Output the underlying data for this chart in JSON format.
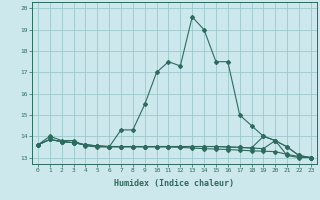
{
  "title": "",
  "xlabel": "Humidex (Indice chaleur)",
  "bg_color": "#cce8ec",
  "line_color": "#2e6b5e",
  "grid_color": "#9cc8cc",
  "xlim": [
    -0.5,
    23.5
  ],
  "ylim": [
    12.7,
    20.3
  ],
  "xticks": [
    0,
    1,
    2,
    3,
    4,
    5,
    6,
    7,
    8,
    9,
    10,
    11,
    12,
    13,
    14,
    15,
    16,
    17,
    18,
    19,
    20,
    21,
    22,
    23
  ],
  "yticks": [
    13,
    14,
    15,
    16,
    17,
    18,
    19,
    20
  ],
  "lines": [
    {
      "x": [
        0,
        1,
        2,
        3,
        4,
        5,
        6,
        7,
        8,
        9,
        10,
        11,
        12,
        13,
        14,
        15,
        16,
        17,
        18,
        19,
        20,
        21,
        22,
        23
      ],
      "y": [
        13.6,
        14.0,
        13.8,
        13.8,
        13.55,
        13.5,
        13.5,
        14.3,
        14.3,
        15.5,
        17.0,
        17.5,
        17.3,
        19.6,
        19.0,
        17.5,
        17.5,
        15.0,
        14.5,
        14.0,
        13.8,
        13.1,
        13.0,
        13.0
      ]
    },
    {
      "x": [
        0,
        1,
        2,
        3,
        4,
        5,
        6,
        7,
        8,
        9,
        10,
        11,
        12,
        13,
        14,
        15,
        16,
        17,
        18,
        19,
        20,
        21,
        22,
        23
      ],
      "y": [
        13.6,
        13.85,
        13.75,
        13.7,
        13.6,
        13.55,
        13.5,
        13.5,
        13.5,
        13.5,
        13.5,
        13.5,
        13.48,
        13.45,
        13.42,
        13.4,
        13.38,
        13.35,
        13.32,
        13.3,
        13.28,
        13.15,
        13.05,
        13.0
      ]
    },
    {
      "x": [
        0,
        1,
        2,
        3,
        4,
        5,
        6,
        7,
        8,
        9,
        10,
        11,
        12,
        13,
        14,
        15,
        16,
        17,
        18,
        19,
        20,
        21,
        22,
        23
      ],
      "y": [
        13.6,
        13.85,
        13.75,
        13.7,
        13.6,
        13.55,
        13.52,
        13.52,
        13.52,
        13.52,
        13.52,
        13.52,
        13.52,
        13.52,
        13.52,
        13.52,
        13.5,
        13.48,
        13.45,
        14.0,
        13.8,
        13.5,
        13.1,
        13.0
      ]
    },
    {
      "x": [
        0,
        1,
        2,
        3,
        4,
        5,
        6,
        7,
        8,
        9,
        10,
        11,
        12,
        13,
        14,
        15,
        16,
        17,
        18,
        19,
        20,
        21,
        22,
        23
      ],
      "y": [
        13.6,
        13.85,
        13.75,
        13.7,
        13.6,
        13.55,
        13.52,
        13.52,
        13.52,
        13.52,
        13.52,
        13.52,
        13.52,
        13.52,
        13.52,
        13.52,
        13.5,
        13.48,
        13.45,
        13.42,
        13.8,
        13.5,
        13.1,
        13.0
      ]
    }
  ]
}
